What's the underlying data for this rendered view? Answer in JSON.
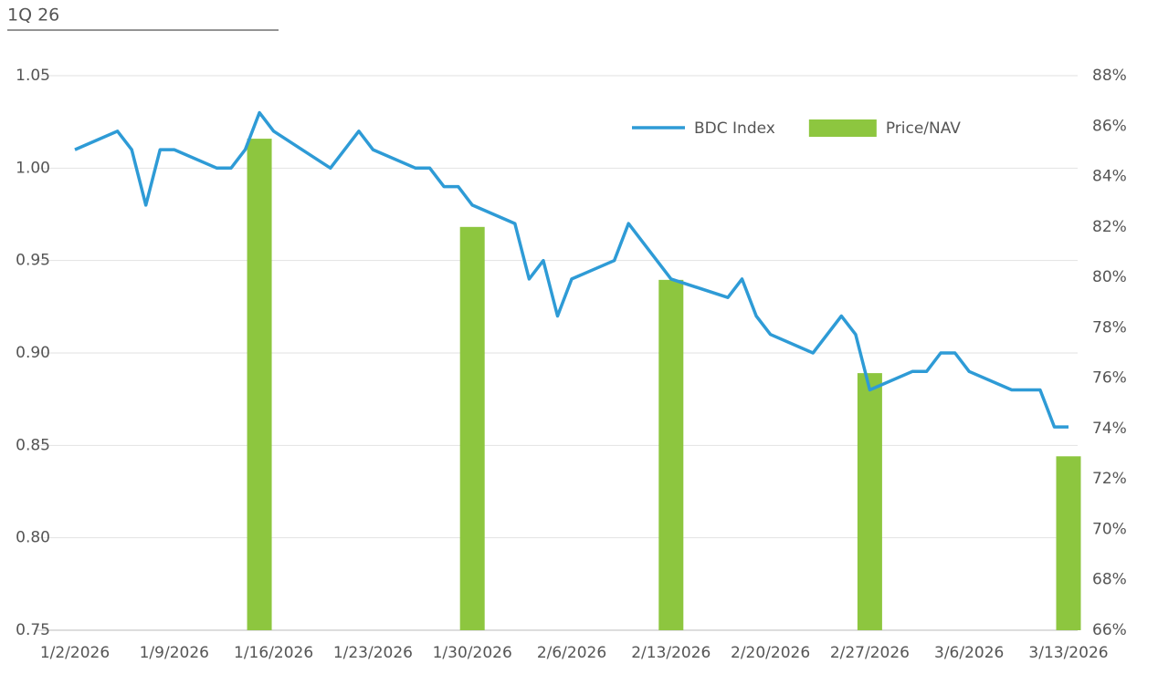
{
  "chart_data": {
    "type": "combo",
    "title": "1Q 26",
    "series": [
      {
        "name": "BDC Index",
        "type": "line",
        "color": "#2e9bd6",
        "x": [
          "1/2/2026",
          "1/5/2026",
          "1/6/2026",
          "1/7/2026",
          "1/8/2026",
          "1/9/2026",
          "1/12/2026",
          "1/13/2026",
          "1/14/2026",
          "1/15/2026",
          "1/16/2026",
          "1/20/2026",
          "1/22/2026",
          "1/23/2026",
          "1/26/2026",
          "1/27/2026",
          "1/28/2026",
          "1/29/2026",
          "1/30/2026",
          "2/2/2026",
          "2/3/2026",
          "2/4/2026",
          "2/5/2026",
          "2/6/2026",
          "2/9/2026",
          "2/10/2026",
          "2/13/2026",
          "2/17/2026",
          "2/18/2026",
          "2/19/2026",
          "2/20/2026",
          "2/23/2026",
          "2/25/2026",
          "2/26/2026",
          "2/27/2026",
          "3/2/2026",
          "3/3/2026",
          "3/4/2026",
          "3/5/2026",
          "3/6/2026",
          "3/9/2026",
          "3/11/2026",
          "3/12/2026",
          "3/13/2026"
        ],
        "values": [
          1.01,
          1.02,
          1.01,
          0.98,
          1.01,
          1.01,
          1.0,
          1.0,
          1.01,
          1.03,
          1.02,
          1.0,
          1.02,
          1.01,
          1.0,
          1.0,
          0.99,
          0.99,
          0.98,
          0.97,
          0.94,
          0.95,
          0.92,
          0.94,
          0.95,
          0.97,
          0.94,
          0.93,
          0.94,
          0.92,
          0.91,
          0.9,
          0.92,
          0.91,
          0.88,
          0.89,
          0.89,
          0.9,
          0.9,
          0.89,
          0.88,
          0.88,
          0.86,
          0.86
        ]
      },
      {
        "name": "Price/NAV",
        "type": "bar",
        "axis": "y2",
        "color": "#8dc63f",
        "x": [
          "1/15/2026",
          "1/30/2026",
          "2/13/2026",
          "2/27/2026",
          "3/13/2026"
        ],
        "values": [
          85.5,
          82.0,
          79.9,
          76.2,
          72.9
        ]
      }
    ],
    "xlim": [
      "1/2/2026",
      "3/13/2026"
    ],
    "xticks": [
      "1/2/2026",
      "1/9/2026",
      "1/16/2026",
      "1/23/2026",
      "1/30/2026",
      "2/6/2026",
      "2/13/2026",
      "2/20/2026",
      "2/27/2026",
      "3/6/2026",
      "3/13/2026"
    ],
    "ylim": [
      0.75,
      1.05
    ],
    "yticks": [
      0.75,
      {
        "value": 0.8,
        "label": "0.80"
      },
      0.85,
      {
        "value": 0.9,
        "label": "0.90"
      },
      0.95,
      {
        "value": 1,
        "label": "1.00"
      },
      1.05
    ],
    "y2lim": [
      66,
      88
    ],
    "y2ticks": [
      {
        "value": 66,
        "label": "66%"
      },
      {
        "value": 68,
        "label": "68%"
      },
      {
        "value": 70,
        "label": "70%"
      },
      {
        "value": 72,
        "label": "72%"
      },
      {
        "value": 74,
        "label": "74%"
      },
      {
        "value": 76,
        "label": "76%"
      },
      {
        "value": 78,
        "label": "78%"
      },
      {
        "value": 80,
        "label": "80%"
      },
      {
        "value": 82,
        "label": "82%"
      },
      {
        "value": 84,
        "label": "84%"
      },
      {
        "value": 86,
        "label": "86%"
      },
      {
        "value": 88,
        "label": "88%"
      }
    ],
    "grid": true,
    "legend": "top-right"
  }
}
